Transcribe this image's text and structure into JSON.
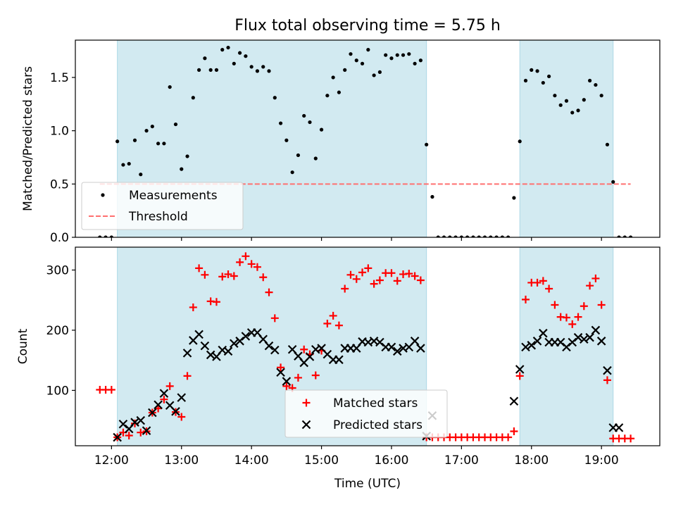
{
  "chart_data": [
    {
      "type": "scatter",
      "title": "Flux total observing time = 5.75 h",
      "xlabel": "",
      "ylabel": "Matched/Predicted stars",
      "ylim": [
        0.0,
        1.85
      ],
      "yticks": [
        "0.0",
        "0.5",
        "1.0",
        "1.5"
      ],
      "ytick_values": [
        0.0,
        0.5,
        1.0,
        1.5
      ],
      "xlim": [
        "11:29",
        "19:50"
      ],
      "xtick_values": [
        "12:00",
        "13:00",
        "14:00",
        "15:00",
        "16:00",
        "17:00",
        "18:00",
        "19:00"
      ],
      "shaded_intervals": [
        [
          "12:05",
          "16:30"
        ],
        [
          "17:50",
          "19:10"
        ]
      ],
      "shade_color": "#add8e6",
      "threshold": {
        "name": "Threshold",
        "value": 0.5,
        "x_range": [
          "11:50",
          "19:25"
        ],
        "color": "#ff7070",
        "style": "dashed"
      },
      "legend": {
        "placement": "lower-left",
        "entries": [
          "Measurements",
          "Threshold"
        ]
      },
      "series": [
        {
          "name": "Measurements",
          "color": "#000000",
          "marker": "dot",
          "x": [
            "11:50",
            "11:55",
            "12:00",
            "12:05",
            "12:10",
            "12:15",
            "12:20",
            "12:25",
            "12:30",
            "12:35",
            "12:40",
            "12:45",
            "12:50",
            "12:55",
            "13:00",
            "13:05",
            "13:10",
            "13:15",
            "13:20",
            "13:25",
            "13:30",
            "13:35",
            "13:40",
            "13:45",
            "13:50",
            "13:55",
            "14:00",
            "14:05",
            "14:10",
            "14:15",
            "14:20",
            "14:25",
            "14:30",
            "14:35",
            "14:40",
            "14:45",
            "14:50",
            "14:55",
            "15:00",
            "15:05",
            "15:10",
            "15:15",
            "15:20",
            "15:25",
            "15:30",
            "15:35",
            "15:40",
            "15:45",
            "15:50",
            "15:55",
            "16:00",
            "16:05",
            "16:10",
            "16:15",
            "16:20",
            "16:25",
            "16:30",
            "16:35",
            "16:40",
            "16:45",
            "16:50",
            "16:55",
            "17:00",
            "17:05",
            "17:10",
            "17:15",
            "17:20",
            "17:25",
            "17:30",
            "17:35",
            "17:40",
            "17:45",
            "17:50",
            "17:55",
            "18:00",
            "18:05",
            "18:10",
            "18:15",
            "18:20",
            "18:25",
            "18:30",
            "18:35",
            "18:40",
            "18:45",
            "18:50",
            "18:55",
            "19:00",
            "19:05",
            "19:10",
            "19:15",
            "19:20",
            "19:25"
          ],
          "y": [
            0.0,
            0.0,
            0.0,
            0.9,
            0.68,
            0.69,
            0.91,
            0.59,
            1.0,
            1.04,
            0.88,
            0.88,
            1.41,
            1.06,
            0.64,
            0.76,
            1.31,
            1.57,
            1.68,
            1.57,
            1.57,
            1.76,
            1.78,
            1.63,
            1.73,
            1.7,
            1.6,
            1.56,
            1.6,
            1.56,
            1.31,
            1.07,
            0.91,
            0.61,
            0.77,
            1.14,
            1.08,
            0.74,
            1.01,
            1.33,
            1.5,
            1.36,
            1.57,
            1.72,
            1.66,
            1.63,
            1.76,
            1.52,
            1.55,
            1.71,
            1.68,
            1.71,
            1.71,
            1.72,
            1.63,
            1.66,
            0.87,
            0.38,
            0.0,
            0.0,
            0.0,
            0.0,
            0.0,
            0.0,
            0.0,
            0.0,
            0.0,
            0.0,
            0.0,
            0.0,
            0.0,
            0.37,
            0.9,
            1.47,
            1.57,
            1.56,
            1.45,
            1.51,
            1.33,
            1.24,
            1.28,
            1.17,
            1.19,
            1.29,
            1.47,
            1.43,
            1.33,
            0.87,
            0.52,
            0.0,
            0.0,
            0.0
          ]
        }
      ]
    },
    {
      "type": "scatter",
      "title": "",
      "xlabel": "Time (UTC)",
      "ylabel": "Count",
      "ylim": [
        8,
        338
      ],
      "yticks": [
        "100",
        "200",
        "300"
      ],
      "ytick_values": [
        100,
        200,
        300
      ],
      "xlim": [
        "11:29",
        "19:50"
      ],
      "xticks": [
        "12:00",
        "13:00",
        "14:00",
        "15:00",
        "16:00",
        "17:00",
        "18:00",
        "19:00"
      ],
      "shaded_intervals": [
        [
          "12:05",
          "16:30"
        ],
        [
          "17:50",
          "19:10"
        ]
      ],
      "shade_color": "#add8e6",
      "legend": {
        "placement": "lower-center",
        "entries": [
          "Matched stars",
          "Predicted stars"
        ]
      },
      "series": [
        {
          "name": "Matched stars",
          "color": "#ff0000",
          "marker": "plus",
          "x": [
            "11:50",
            "11:55",
            "12:00",
            "12:05",
            "12:10",
            "12:15",
            "12:20",
            "12:25",
            "12:30",
            "12:35",
            "12:40",
            "12:45",
            "12:50",
            "12:55",
            "13:00",
            "13:05",
            "13:10",
            "13:15",
            "13:20",
            "13:25",
            "13:30",
            "13:35",
            "13:40",
            "13:45",
            "13:50",
            "13:55",
            "14:00",
            "14:05",
            "14:10",
            "14:15",
            "14:20",
            "14:25",
            "14:30",
            "14:35",
            "14:40",
            "14:45",
            "14:50",
            "14:55",
            "15:00",
            "15:05",
            "15:10",
            "15:15",
            "15:20",
            "15:25",
            "15:30",
            "15:35",
            "15:40",
            "15:45",
            "15:50",
            "15:55",
            "16:00",
            "16:05",
            "16:10",
            "16:15",
            "16:20",
            "16:25",
            "16:30",
            "16:35",
            "16:40",
            "16:45",
            "16:50",
            "16:55",
            "17:00",
            "17:05",
            "17:10",
            "17:15",
            "17:20",
            "17:25",
            "17:30",
            "17:35",
            "17:40",
            "17:45",
            "17:50",
            "17:55",
            "18:00",
            "18:05",
            "18:10",
            "18:15",
            "18:20",
            "18:25",
            "18:30",
            "18:35",
            "18:40",
            "18:45",
            "18:50",
            "18:55",
            "19:00",
            "19:05",
            "19:10",
            "19:15",
            "19:20",
            "19:25"
          ],
          "y": [
            101,
            101,
            101,
            22,
            30,
            25,
            45,
            30,
            32,
            63,
            70,
            85,
            107,
            64,
            56,
            124,
            238,
            303,
            292,
            248,
            247,
            289,
            293,
            290,
            313,
            323,
            310,
            305,
            288,
            263,
            220,
            138,
            107,
            104,
            121,
            168,
            160,
            125,
            166,
            211,
            224,
            208,
            269,
            292,
            285,
            296,
            303,
            277,
            283,
            295,
            295,
            282,
            293,
            294,
            290,
            283,
            22,
            22,
            22,
            22,
            22,
            22,
            22,
            22,
            22,
            22,
            22,
            22,
            22,
            22,
            22,
            32,
            124,
            251,
            279,
            279,
            282,
            269,
            242,
            222,
            221,
            210,
            222,
            240,
            274,
            286,
            242,
            117,
            20,
            20,
            20,
            20
          ]
        },
        {
          "name": "Predicted stars",
          "color": "#000000",
          "marker": "x",
          "x": [
            "12:05",
            "12:10",
            "12:15",
            "12:20",
            "12:25",
            "12:30",
            "12:35",
            "12:40",
            "12:45",
            "12:50",
            "12:55",
            "13:00",
            "13:05",
            "13:10",
            "13:15",
            "13:20",
            "13:25",
            "13:30",
            "13:35",
            "13:40",
            "13:45",
            "13:50",
            "13:55",
            "14:00",
            "14:05",
            "14:10",
            "14:15",
            "14:20",
            "14:25",
            "14:30",
            "14:35",
            "14:40",
            "14:45",
            "14:50",
            "14:55",
            "15:00",
            "15:05",
            "15:10",
            "15:15",
            "15:20",
            "15:25",
            "15:30",
            "15:35",
            "15:40",
            "15:45",
            "15:50",
            "15:55",
            "16:00",
            "16:05",
            "16:10",
            "16:15",
            "16:20",
            "16:25",
            "16:30",
            "16:35",
            "17:45",
            "17:50",
            "17:55",
            "18:00",
            "18:05",
            "18:10",
            "18:15",
            "18:20",
            "18:25",
            "18:30",
            "18:35",
            "18:40",
            "18:45",
            "18:50",
            "18:55",
            "19:00",
            "19:05",
            "19:10",
            "19:15"
          ],
          "y": [
            22,
            44,
            36,
            47,
            50,
            33,
            63,
            76,
            95,
            75,
            65,
            88,
            162,
            183,
            193,
            174,
            159,
            156,
            167,
            165,
            178,
            182,
            190,
            196,
            196,
            185,
            174,
            167,
            130,
            115,
            168,
            157,
            146,
            156,
            168,
            170,
            160,
            151,
            151,
            170,
            170,
            170,
            181,
            180,
            182,
            180,
            172,
            172,
            165,
            170,
            172,
            182,
            170,
            24,
            58,
            82,
            135,
            172,
            175,
            182,
            195,
            180,
            180,
            180,
            172,
            180,
            188,
            185,
            188,
            200,
            182,
            133,
            38,
            38
          ]
        }
      ]
    }
  ]
}
